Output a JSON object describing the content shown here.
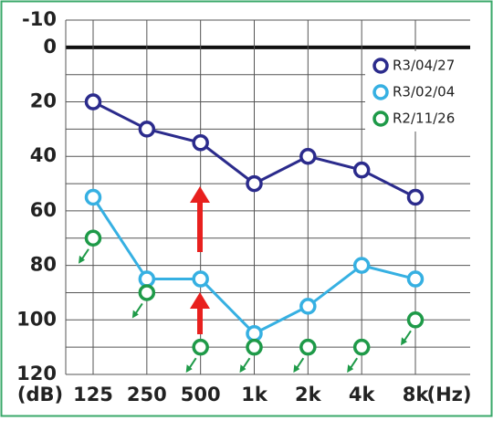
{
  "chart_data": {
    "type": "audiogram",
    "categories": [
      "125",
      "250",
      "500",
      "1k",
      "2k",
      "4k",
      "8k"
    ],
    "x_label": "(Hz)",
    "y_label": "(dB)",
    "ylim": [
      -10,
      120
    ],
    "yticks": [
      -10,
      0,
      20,
      40,
      60,
      80,
      100,
      120
    ],
    "minor_yticks": [
      10,
      30,
      50,
      70,
      90,
      110
    ],
    "inverted_y": true,
    "grid": true,
    "legend": "upper right",
    "series": [
      {
        "name": "R3/04/27",
        "color": "#2b2b8c",
        "connected": true,
        "no_response": false,
        "values": [
          20,
          30,
          35,
          50,
          40,
          45,
          55
        ]
      },
      {
        "name": "R3/02/04",
        "color": "#36b0e2",
        "connected": true,
        "no_response": false,
        "values": [
          55,
          85,
          85,
          105,
          95,
          80,
          85
        ]
      },
      {
        "name": "R2/11/26",
        "color": "#1e9a48",
        "connected": false,
        "no_response": true,
        "values": [
          70,
          90,
          110,
          110,
          110,
          110,
          100
        ]
      }
    ]
  }
}
